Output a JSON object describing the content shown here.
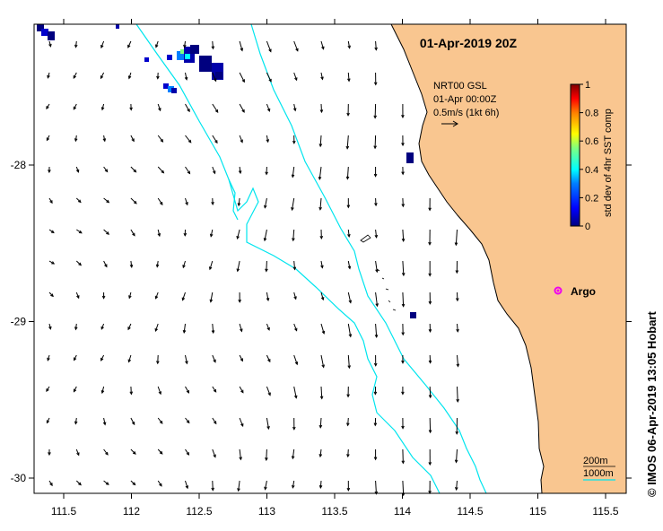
{
  "map": {
    "title": "01-Apr-2019 20Z",
    "credit": "© IMOS 06-Apr-2019 13:05 Hobart",
    "current_legend": {
      "line1": "NRT00 GSL",
      "line2": "01-Apr 00:00Z",
      "line3": "0.5m/s (1kt 6h)"
    },
    "colorbar": {
      "label": "std dev of 4hr SST comp",
      "ticks": [
        "1",
        "0.8",
        "0.6",
        "0.4",
        "0.2",
        "0"
      ],
      "colors": [
        "#00007f",
        "#0000ff",
        "#007fff",
        "#00ffff",
        "#7fff7f",
        "#ffff00",
        "#ff7f00",
        "#ff0000",
        "#7f0000"
      ]
    },
    "argo_label": "Argo",
    "bathymetry_legend": {
      "contour_200": "200m",
      "contour_1000": "1000m"
    },
    "x_ticks": [
      "111.5",
      "112",
      "112.5",
      "113",
      "113.5",
      "114",
      "114.5",
      "115",
      "115.5"
    ],
    "y_ticks": [
      "-28",
      "-29",
      "-30"
    ],
    "colors": {
      "land": "#f9c690",
      "contour": "#00e5ee",
      "argo": "#ee00ee"
    }
  }
}
